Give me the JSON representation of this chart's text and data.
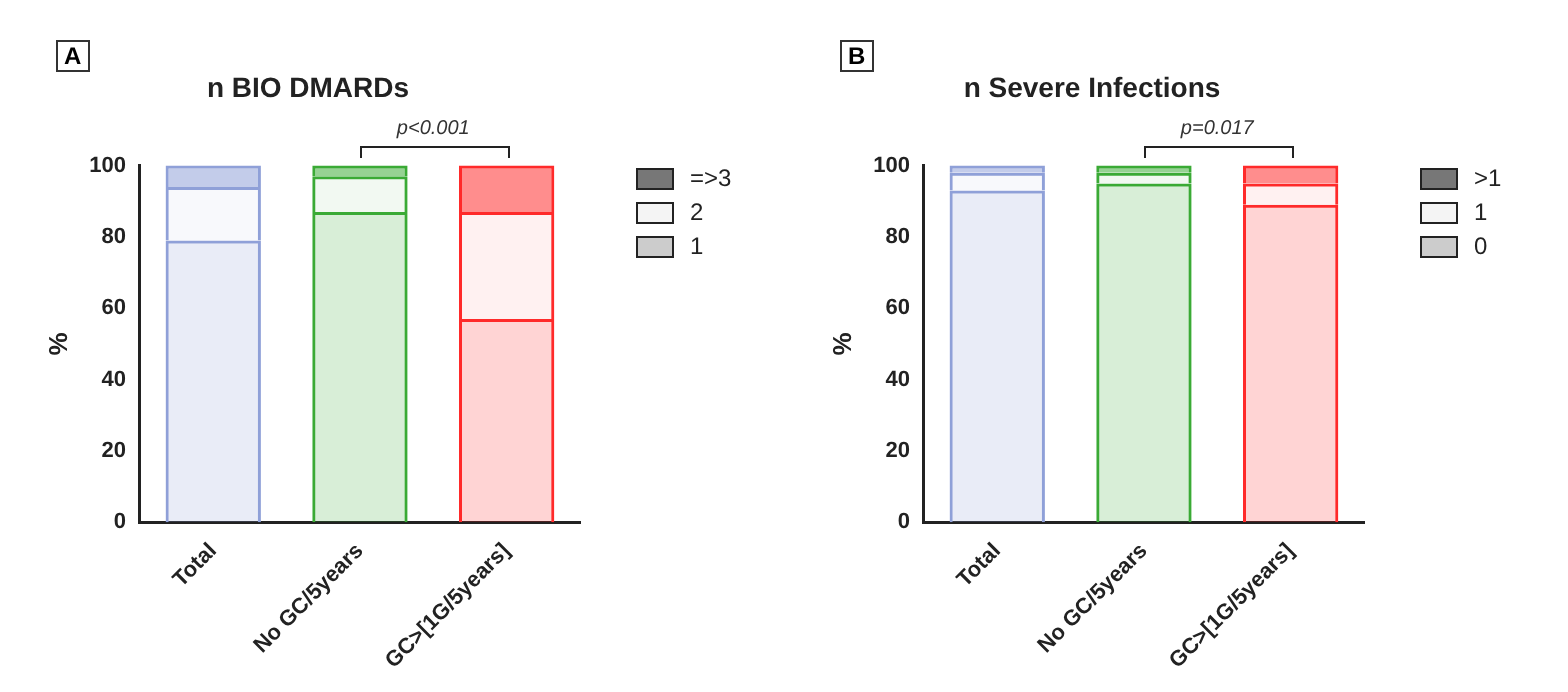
{
  "chart_data": [
    {
      "type": "bar",
      "title": "n BIO DMARDs",
      "ylabel": "%",
      "stacked": true,
      "categories": [
        "Total",
        "No GC/5years",
        "GC>[1G/5years]"
      ],
      "series": [
        {
          "name": "1",
          "color": "#cccccc",
          "colors": [
            "#8fa0d8",
            "#3aaa35",
            "#ff2a2a"
          ],
          "values": [
            79,
            87,
            57
          ]
        },
        {
          "name": "2",
          "color": "#f4f4f4",
          "colors": [
            "#8fa0d8",
            "#3aaa35",
            "#ff2a2a"
          ],
          "values": [
            15,
            10,
            30
          ]
        },
        {
          "name": "=>3",
          "color": "#777777",
          "colors": [
            "#8fa0d8",
            "#3aaa35",
            "#ff2a2a"
          ],
          "values": [
            6,
            3,
            13
          ]
        }
      ],
      "ylim": [
        0,
        100
      ],
      "yticks": [
        0,
        20,
        40,
        60,
        80,
        100
      ],
      "grid": false,
      "legend": "right",
      "annotations": [
        "A",
        "p<0.001"
      ]
    },
    {
      "type": "bar",
      "title": "n Severe Infections",
      "ylabel": "%",
      "stacked": true,
      "categories": [
        "Total",
        "No GC/5years",
        "GC>[1G/5years]"
      ],
      "series": [
        {
          "name": "0",
          "color": "#cccccc",
          "colors": [
            "#8fa0d8",
            "#3aaa35",
            "#ff2a2a"
          ],
          "values": [
            93,
            95,
            89
          ]
        },
        {
          "name": "1",
          "color": "#f4f4f4",
          "colors": [
            "#8fa0d8",
            "#3aaa35",
            "#ff2a2a"
          ],
          "values": [
            5,
            3,
            6
          ]
        },
        {
          "name": ">1",
          "color": "#777777",
          "colors": [
            "#8fa0d8",
            "#3aaa35",
            "#ff2a2a"
          ],
          "values": [
            2,
            2,
            5
          ]
        }
      ],
      "ylim": [
        0,
        100
      ],
      "yticks": [
        0,
        20,
        40,
        60,
        80,
        100
      ],
      "grid": false,
      "legend": "right",
      "annotations": [
        "B",
        "p=0.017"
      ]
    }
  ]
}
